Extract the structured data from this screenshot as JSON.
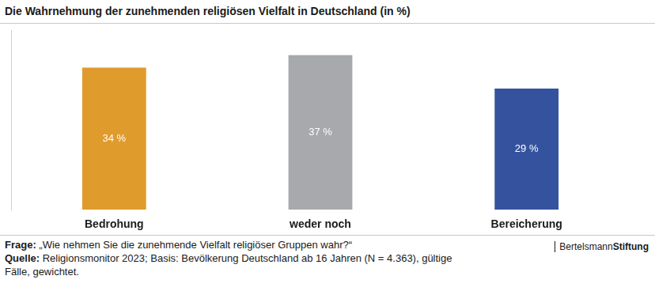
{
  "chart_data": {
    "type": "bar",
    "title": "Die Wahrnehmung der zunehmenden religiösen Vielfalt in Deutschland (in %)",
    "categories": [
      "Bedrohung",
      "weder noch",
      "Bereicherung"
    ],
    "values": [
      34,
      37,
      29
    ],
    "value_labels": [
      "34 %",
      "37 %",
      "29 %"
    ],
    "colors": [
      "#e09b2d",
      "#a7a9ac",
      "#34529e"
    ],
    "ylim": [
      0,
      43
    ],
    "grid": false,
    "data_labels": true,
    "tick_labels": "x"
  },
  "footer": {
    "question_label": "Frage:",
    "question": "„Wie nehmen Sie die zunehmende Vielfalt religiöser Gruppen wahr?“",
    "source_label": "Quelle:",
    "source": "Religionsmonitor 2023; Basis: Bevölkerung Deutschland ab 16 Jahren (N = 4.363), gültige Fälle, gewichtet.",
    "brand": [
      "Bertelsmann",
      "Stiftung"
    ]
  }
}
